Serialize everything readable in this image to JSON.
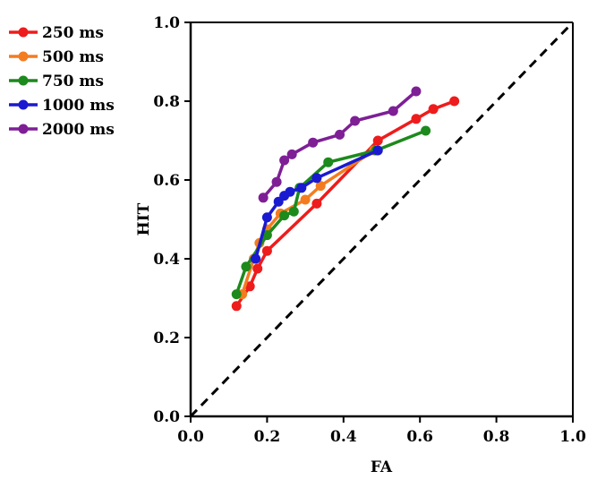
{
  "chart_data": {
    "type": "line",
    "xlabel": "FA",
    "ylabel": "HIT",
    "xlim": [
      0.0,
      1.0
    ],
    "ylim": [
      0.0,
      1.0
    ],
    "xticks": [
      "0.0",
      "0.2",
      "0.4",
      "0.6",
      "0.8",
      "1.0"
    ],
    "yticks": [
      "0.0",
      "0.2",
      "0.4",
      "0.6",
      "0.8",
      "1.0"
    ],
    "grid": false,
    "legend_position": "left",
    "reference_line": {
      "x": [
        0.0,
        1.0
      ],
      "y": [
        0.0,
        1.0
      ],
      "style": "dashed",
      "color": "#000000"
    },
    "series": [
      {
        "name": "250 ms",
        "color": "#ee1c1c",
        "x": [
          0.12,
          0.155,
          0.175,
          0.2,
          0.33,
          0.49,
          0.59,
          0.635,
          0.69
        ],
        "y": [
          0.28,
          0.33,
          0.375,
          0.42,
          0.54,
          0.7,
          0.755,
          0.78,
          0.8
        ]
      },
      {
        "name": "500 ms",
        "color": "#f47c20",
        "x": [
          0.135,
          0.165,
          0.18,
          0.2,
          0.235,
          0.3,
          0.34,
          0.48
        ],
        "y": [
          0.31,
          0.4,
          0.44,
          0.475,
          0.515,
          0.55,
          0.585,
          0.675
        ]
      },
      {
        "name": "750 ms",
        "color": "#1c8a1c",
        "x": [
          0.12,
          0.145,
          0.2,
          0.245,
          0.27,
          0.285,
          0.36,
          0.485,
          0.615
        ],
        "y": [
          0.31,
          0.38,
          0.46,
          0.51,
          0.52,
          0.58,
          0.645,
          0.675,
          0.725
        ]
      },
      {
        "name": "1000 ms",
        "color": "#1a1ad0",
        "x": [
          0.17,
          0.2,
          0.23,
          0.245,
          0.26,
          0.29,
          0.33,
          0.49
        ],
        "y": [
          0.4,
          0.505,
          0.545,
          0.56,
          0.57,
          0.58,
          0.605,
          0.675
        ]
      },
      {
        "name": "2000 ms",
        "color": "#7e1f96",
        "x": [
          0.19,
          0.225,
          0.245,
          0.265,
          0.32,
          0.39,
          0.43,
          0.53,
          0.59
        ],
        "y": [
          0.555,
          0.595,
          0.65,
          0.665,
          0.695,
          0.715,
          0.75,
          0.775,
          0.825
        ]
      }
    ]
  }
}
